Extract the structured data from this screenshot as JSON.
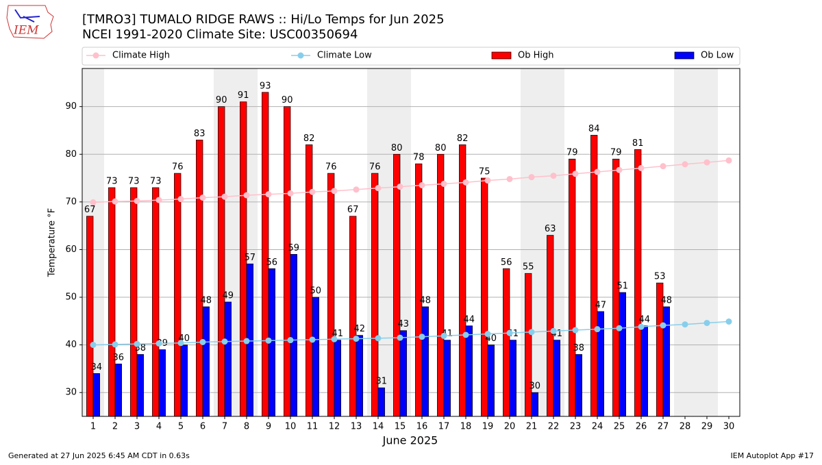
{
  "chart_data": {
    "type": "bar",
    "logo_text": "IEM",
    "title": "[TMRO3] TUMALO RIDGE RAWS :: Hi/Lo Temps for Jun 2025",
    "subtitle": "NCEI 1991-2020 Climate Site: USC00350694",
    "xlabel": "June 2025",
    "ylabel": "Temperature °F",
    "footer_left": "Generated at 27 Jun 2025 6:45 AM CDT in 0.63s",
    "footer_right": "IEM Autoplot App #17",
    "x": [
      1,
      2,
      3,
      4,
      5,
      6,
      7,
      8,
      9,
      10,
      11,
      12,
      13,
      14,
      15,
      16,
      17,
      18,
      19,
      20,
      21,
      22,
      23,
      24,
      25,
      26,
      27,
      28,
      29,
      30
    ],
    "xlim": [
      0.5,
      30.5
    ],
    "xticks": [
      1,
      2,
      3,
      4,
      5,
      6,
      7,
      8,
      9,
      10,
      11,
      12,
      13,
      14,
      15,
      16,
      17,
      18,
      19,
      20,
      21,
      22,
      23,
      24,
      25,
      26,
      27,
      28,
      29,
      30
    ],
    "ylim": [
      25,
      98
    ],
    "yticks": [
      30,
      40,
      50,
      60,
      70,
      80,
      90
    ],
    "grid": true,
    "shaded_days": [
      1,
      7,
      8,
      14,
      15,
      21,
      22,
      28,
      29
    ],
    "series": [
      {
        "name": "Climate High",
        "kind": "line",
        "color": "#ffc0cb",
        "values": [
          69.9,
          70.1,
          70.2,
          70.4,
          70.6,
          70.9,
          71.1,
          71.4,
          71.6,
          71.8,
          72.1,
          72.3,
          72.6,
          72.9,
          73.2,
          73.5,
          73.8,
          74.1,
          74.5,
          74.8,
          75.2,
          75.5,
          75.9,
          76.3,
          76.7,
          77.1,
          77.5,
          77.9,
          78.3,
          78.7
        ]
      },
      {
        "name": "Climate Low",
        "kind": "line",
        "color": "#87ceeb",
        "values": [
          40.0,
          40.1,
          40.2,
          40.3,
          40.4,
          40.6,
          40.7,
          40.8,
          40.9,
          41.0,
          41.1,
          41.2,
          41.3,
          41.4,
          41.5,
          41.7,
          41.9,
          42.1,
          42.3,
          42.5,
          42.7,
          42.9,
          43.1,
          43.3,
          43.5,
          43.8,
          44.1,
          44.3,
          44.6,
          44.9
        ]
      },
      {
        "name": "Ob High",
        "kind": "bar",
        "color": "#ff0000",
        "values": [
          67,
          73,
          73,
          73,
          76,
          83,
          90,
          91,
          93,
          90,
          82,
          76,
          67,
          76,
          80,
          78,
          80,
          82,
          75,
          56,
          55,
          63,
          79,
          84,
          79,
          81,
          53,
          null,
          null,
          null
        ]
      },
      {
        "name": "Ob Low",
        "kind": "bar",
        "color": "#0000ff",
        "values": [
          34,
          36,
          38,
          39,
          40,
          48,
          49,
          57,
          56,
          59,
          50,
          41,
          42,
          31,
          43,
          48,
          41,
          44,
          40,
          41,
          30,
          41,
          38,
          47,
          51,
          44,
          48,
          null,
          null,
          null
        ]
      }
    ]
  }
}
